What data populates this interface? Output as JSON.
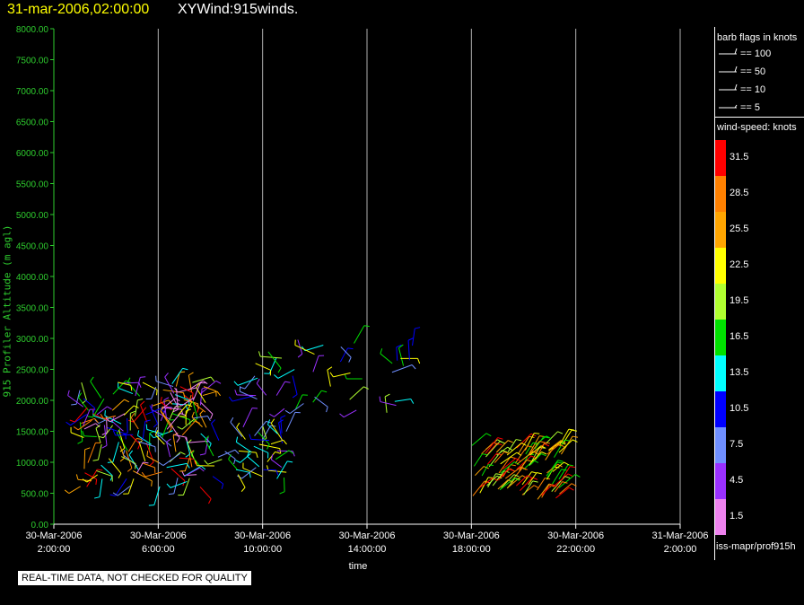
{
  "header": {
    "date": "31-mar-2006,02:00:00",
    "name": "XYWind:915winds."
  },
  "disclaimer": "REAL-TIME DATA, NOT CHECKED FOR QUALITY",
  "footer": "iss-mapr/prof915h",
  "legend": {
    "barb_title": "barb flags in knots",
    "barbs": [
      "== 100",
      "== 50",
      "== 10",
      "== 5"
    ],
    "speed_title": "wind-speed: knots",
    "speed_labels": [
      "31.5",
      "28.5",
      "25.5",
      "22.5",
      "19.5",
      "16.5",
      "13.5",
      "10.5",
      "7.5",
      "4.5",
      "1.5"
    ],
    "speed_colors": [
      "#ff0000",
      "#ff8000",
      "#ffa500",
      "#ffff00",
      "#b0ff30",
      "#00e000",
      "#00ffff",
      "#0000ff",
      "#6f8fff",
      "#9a30ff",
      "#ee82ee"
    ]
  },
  "chart_data": {
    "type": "scatter",
    "title": "31-mar-2006,02:00:00  XYWind:915winds.",
    "xlabel": "time",
    "ylabel": "915 Profiler Altitude (m agl)",
    "x_ticks": [
      [
        "30-Mar-2006",
        "2:00:00"
      ],
      [
        "30-Mar-2006",
        "6:00:00"
      ],
      [
        "30-Mar-2006",
        "10:00:00"
      ],
      [
        "30-Mar-2006",
        "14:00:00"
      ],
      [
        "30-Mar-2006",
        "18:00:00"
      ],
      [
        "30-Mar-2006",
        "22:00:00"
      ],
      [
        "31-Mar-2006",
        "2:00:00"
      ]
    ],
    "x_range_hours": [
      0,
      24
    ],
    "ylim": [
      0,
      8000
    ],
    "y_ticks": [
      "0.00",
      "500.00",
      "1000.00",
      "1500.00",
      "2000.00",
      "2500.00",
      "3000.00",
      "3500.00",
      "4000.00",
      "4500.00",
      "5000.00",
      "5500.00",
      "6000.00",
      "6500.00",
      "7000.00",
      "7500.00",
      "8000.00"
    ],
    "grid": "vertical",
    "clusters": [
      {
        "start": "30-Mar-2006 3:00",
        "end": "30-Mar-2006 8:00",
        "alt_min": 600,
        "alt_max": 2300,
        "speed_range": "1.5-31.5"
      },
      {
        "start": "30-Mar-2006 8:00",
        "end": "30-Mar-2006 11:00",
        "alt_min": 700,
        "alt_max": 1600,
        "speed_range": "4.5-22.5"
      },
      {
        "start": "30-Mar-2006 9:30",
        "end": "30-Mar-2006 16:00",
        "alt_min": 1800,
        "alt_max": 3000,
        "speed_range": "4.5-22.5"
      },
      {
        "start": "30-Mar-2006 18:00",
        "end": "30-Mar-2006 21:30",
        "alt_min": 400,
        "alt_max": 1300,
        "speed_range": "16.5-31.5"
      }
    ]
  }
}
